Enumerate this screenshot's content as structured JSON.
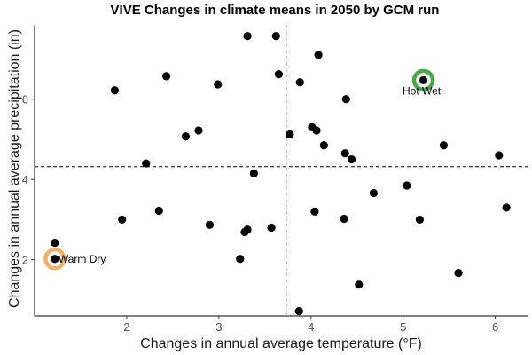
{
  "chart_data": {
    "type": "scatter",
    "title": "VIVE Changes in climate means in 2050 by GCM run",
    "xlabel": "Changes in annual average temperature (°F)",
    "ylabel": "Changes in annual average precipitation (in)",
    "xlim": [
      1.0,
      6.35
    ],
    "ylim": [
      0.6,
      7.85
    ],
    "xticks": [
      2,
      3,
      4,
      5,
      6
    ],
    "yticks": [
      2,
      4,
      6
    ],
    "grid": false,
    "reference_lines": {
      "vertical_x": 3.73,
      "horizontal_y": 4.32
    },
    "points": [
      {
        "x": 1.22,
        "y": 2.42
      },
      {
        "x": 1.22,
        "y": 2.02
      },
      {
        "x": 1.87,
        "y": 6.22
      },
      {
        "x": 1.95,
        "y": 3.0
      },
      {
        "x": 2.21,
        "y": 4.4
      },
      {
        "x": 2.35,
        "y": 3.22
      },
      {
        "x": 2.43,
        "y": 6.57
      },
      {
        "x": 2.64,
        "y": 5.07
      },
      {
        "x": 2.78,
        "y": 5.22
      },
      {
        "x": 2.9,
        "y": 2.87
      },
      {
        "x": 2.99,
        "y": 6.37
      },
      {
        "x": 3.23,
        "y": 2.02
      },
      {
        "x": 3.28,
        "y": 2.69
      },
      {
        "x": 3.31,
        "y": 7.57
      },
      {
        "x": 3.31,
        "y": 2.75
      },
      {
        "x": 3.38,
        "y": 4.15
      },
      {
        "x": 3.57,
        "y": 2.8
      },
      {
        "x": 3.62,
        "y": 7.57
      },
      {
        "x": 3.65,
        "y": 6.62
      },
      {
        "x": 3.77,
        "y": 5.12
      },
      {
        "x": 3.87,
        "y": 0.72
      },
      {
        "x": 3.88,
        "y": 6.42
      },
      {
        "x": 4.01,
        "y": 5.3
      },
      {
        "x": 4.04,
        "y": 3.2
      },
      {
        "x": 4.06,
        "y": 5.22
      },
      {
        "x": 4.08,
        "y": 7.1
      },
      {
        "x": 4.14,
        "y": 4.85
      },
      {
        "x": 4.36,
        "y": 3.02
      },
      {
        "x": 4.37,
        "y": 4.65
      },
      {
        "x": 4.38,
        "y": 6.0
      },
      {
        "x": 4.44,
        "y": 4.5
      },
      {
        "x": 4.52,
        "y": 1.38
      },
      {
        "x": 4.68,
        "y": 3.66
      },
      {
        "x": 5.04,
        "y": 3.85
      },
      {
        "x": 5.18,
        "y": 3.0
      },
      {
        "x": 5.22,
        "y": 6.47
      },
      {
        "x": 5.44,
        "y": 4.85
      },
      {
        "x": 5.6,
        "y": 1.67
      },
      {
        "x": 6.04,
        "y": 4.6
      },
      {
        "x": 6.12,
        "y": 3.3
      }
    ],
    "annotations": [
      {
        "label": "Hot Wet",
        "x": 5.22,
        "y": 6.47,
        "ring_color": "#4aa84a"
      },
      {
        "label": "Warm Dry",
        "x": 1.22,
        "y": 2.02,
        "ring_color": "#f5b068"
      }
    ]
  }
}
